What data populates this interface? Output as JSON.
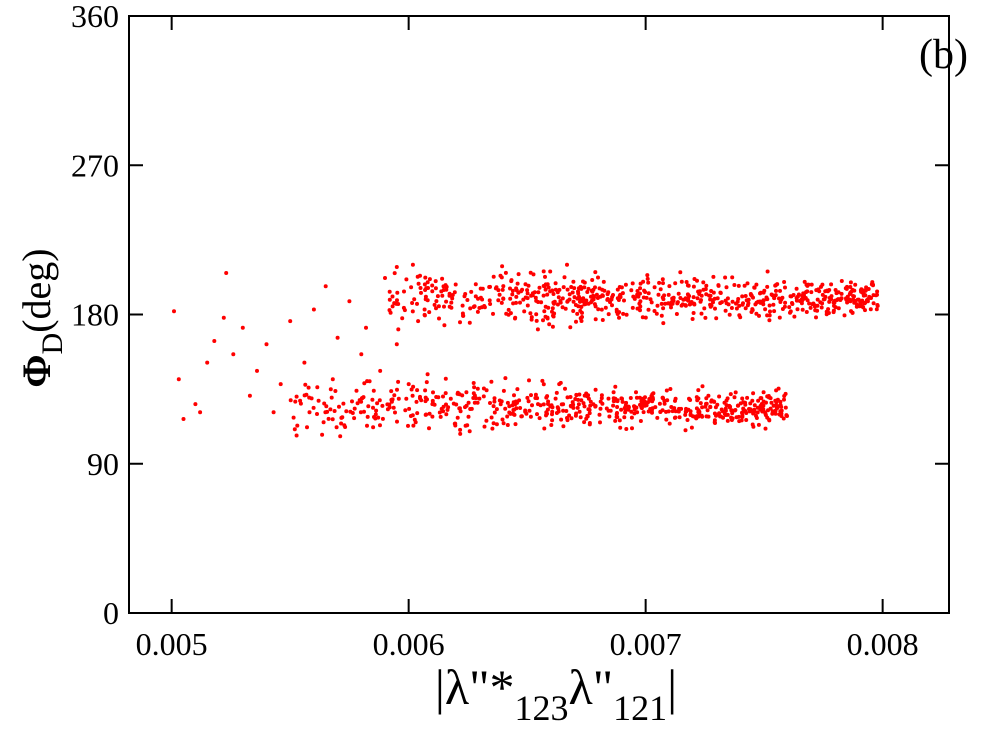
{
  "chart_data": {
    "type": "scatter",
    "title": "",
    "panel_label": "(b)",
    "xlabel": {
      "pre": "|λ\"*",
      "sub1": "123",
      "mid": "λ\"",
      "sub2": "121",
      "post": "|"
    },
    "ylabel": {
      "main": "Φ",
      "sub": "D",
      "rest": "(deg)"
    },
    "xlim": [
      0.00482,
      0.00828
    ],
    "ylim": [
      0,
      360
    ],
    "xticks": [
      "0.005",
      "0.006",
      "0.007",
      "0.008"
    ],
    "xtick_values": [
      0.005,
      0.006,
      0.007,
      0.008
    ],
    "yticks": [
      "0",
      "90",
      "180",
      "270",
      "360"
    ],
    "ytick_values": [
      0,
      90,
      180,
      270,
      360
    ],
    "grid": false,
    "legend": "none",
    "point_color": "#ff0000",
    "series": [
      {
        "points": [
          [
            0.00501,
            182
          ],
          [
            0.00503,
            141
          ],
          [
            0.00505,
            117
          ],
          [
            0.0051,
            126
          ],
          [
            0.00512,
            121
          ],
          [
            0.00515,
            151
          ],
          [
            0.00518,
            164
          ],
          [
            0.00522,
            178
          ],
          [
            0.00523,
            205
          ],
          [
            0.00526,
            156
          ],
          [
            0.0053,
            172
          ],
          [
            0.00533,
            131
          ],
          [
            0.00536,
            146
          ],
          [
            0.0054,
            162
          ],
          [
            0.00543,
            121
          ],
          [
            0.00546,
            138
          ],
          [
            0.0055,
            176
          ],
          [
            0.00553,
            113
          ],
          [
            0.00556,
            151
          ],
          [
            0.0056,
            183
          ],
          [
            0.00562,
            128
          ],
          [
            0.00565,
            197
          ],
          [
            0.00568,
            141
          ],
          [
            0.0057,
            166
          ],
          [
            0.00572,
            118
          ],
          [
            0.00575,
            188
          ],
          [
            0.00578,
            134
          ],
          [
            0.0058,
            156
          ],
          [
            0.00582,
            172
          ],
          [
            0.00585,
            112
          ],
          [
            0.00588,
            146
          ],
          [
            0.0059,
            202
          ],
          [
            0.00592,
            124
          ],
          [
            0.00595,
            162
          ],
          [
            0.00598,
            184
          ],
          [
            0.006,
            138
          ],
          [
            0.00602,
            113
          ],
          [
            0.00604,
            176
          ],
          [
            0.00605,
            196
          ],
          [
            0.00608,
            144
          ],
          [
            0.0061,
            126
          ]
        ],
        "bands": [
          {
            "xmin": 0.0055,
            "xmax": 0.0076,
            "ymin": 108,
            "ymax": 138,
            "count": 620,
            "center": 124,
            "x_peak": 0.0065
          },
          {
            "xmin": 0.0059,
            "xmax": 0.00798,
            "ymin": 175,
            "ymax": 206,
            "count": 700,
            "center": 190,
            "x_peak": 0.0072
          }
        ],
        "outliers": [
          [
            0.00752,
            130
          ],
          [
            0.00738,
            133
          ],
          [
            0.00745,
            128
          ]
        ]
      }
    ]
  }
}
